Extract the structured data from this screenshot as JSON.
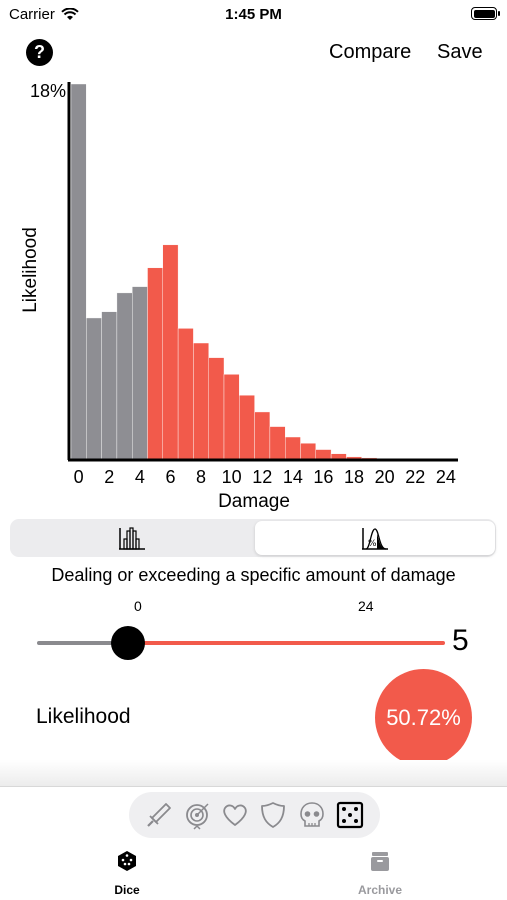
{
  "status_bar": {
    "carrier": "Carrier",
    "time": "1:45 PM"
  },
  "nav": {
    "help_label": "?",
    "compare_label": "Compare",
    "save_label": "Save"
  },
  "chart_data": {
    "type": "bar",
    "ylabel": "Likelihood",
    "xlabel": "Damage",
    "y_max_label": "18%",
    "ylim": [
      0,
      18
    ],
    "x_ticks": [
      "0",
      "2",
      "4",
      "6",
      "8",
      "10",
      "12",
      "14",
      "16",
      "18",
      "20",
      "22",
      "24"
    ],
    "categories": [
      0,
      1,
      2,
      3,
      4,
      5,
      6,
      7,
      8,
      9,
      10,
      11,
      12,
      13,
      14,
      15,
      16,
      17,
      18,
      19,
      20,
      21,
      22,
      23,
      24
    ],
    "values": [
      18.0,
      6.8,
      7.1,
      8.0,
      8.3,
      9.2,
      10.3,
      6.3,
      5.6,
      4.9,
      4.1,
      3.1,
      2.3,
      1.6,
      1.1,
      0.8,
      0.5,
      0.3,
      0.15,
      0.1,
      0.05,
      0.03,
      0.02,
      0.01,
      0.0
    ],
    "threshold": 5,
    "colors": {
      "below": "#8e8e93",
      "at_or_above": "#f25a4b",
      "axis": "#000000"
    }
  },
  "mode_selector": {
    "options": [
      {
        "icon": "distribution-icon"
      },
      {
        "icon": "cumulative-percent-icon",
        "selected": true
      }
    ]
  },
  "caption": "Dealing or exceeding a specific amount of damage",
  "slider": {
    "min_label": "0",
    "max_label": "24",
    "value": "5",
    "min": 0,
    "max": 24
  },
  "result": {
    "label": "Likelihood",
    "value": "50.72%"
  },
  "toolbar": {
    "icons": [
      "sword-icon",
      "target-icon",
      "heart-icon",
      "shield-icon",
      "skull-icon",
      "dice-icon"
    ],
    "selected": "dice-icon"
  },
  "tabbar": {
    "tabs": [
      {
        "label": "Dice",
        "icon": "dice-icon",
        "selected": true
      },
      {
        "label": "Archive",
        "icon": "archive-icon"
      }
    ]
  },
  "accent_color": "#f25a4b"
}
